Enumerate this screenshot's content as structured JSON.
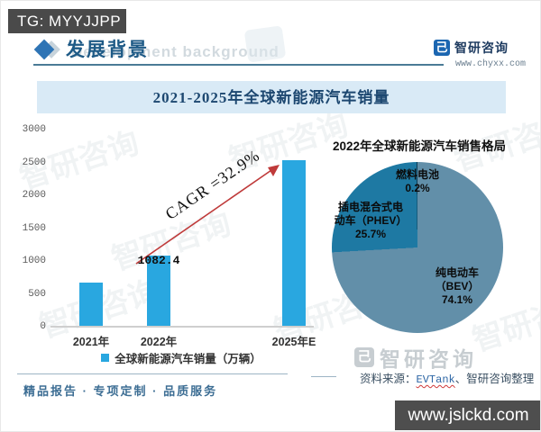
{
  "page": {
    "tg_badge": "TG: MYYJJPP",
    "site_badge": "www.jslckd.com"
  },
  "header": {
    "title": "发展背景",
    "watermark_text": "Development background",
    "brand_name": "智研咨询",
    "brand_mark_glyph": "己",
    "brand_url": "www.chyxx.com",
    "brand_color": "#1b66b1"
  },
  "banner": {
    "title": "2021-2025年全球新能源汽车销量"
  },
  "chart_data": [
    {
      "type": "bar",
      "title": "2021-2025年全球新能源汽车销量",
      "categories": [
        "2021年",
        "2022年",
        "2025年E"
      ],
      "values": [
        670,
        1082.4,
        2540
      ],
      "labeled_value": {
        "category_index": 1,
        "text": "1082.4"
      },
      "ylim": [
        0,
        3000
      ],
      "yticks": [
        0,
        500,
        1000,
        1500,
        2000,
        2500,
        3000
      ],
      "ylabel": "",
      "xlabel": "",
      "grid": false,
      "legend": [
        "全球新能源汽车销量（万辆）"
      ],
      "legend_position": "bottom",
      "bar_color": "#29a7e0",
      "annotation": {
        "text": "CAGR =32.9%",
        "color": "#bf3a3a",
        "style": "arrow-up-right"
      }
    },
    {
      "type": "pie",
      "title": "2022年全球新能源汽车销售格局",
      "slices": [
        {
          "name": "纯电动车（BEV）",
          "value_pct": 74.1,
          "color": "#628fa9",
          "label_lines": [
            "纯电动车",
            "（BEV）",
            "74.1%"
          ]
        },
        {
          "name": "插电混合式电动车（PHEV）",
          "value_pct": 25.7,
          "color": "#1e79a3",
          "label_lines": [
            "插电混合式电",
            "动车（PHEV）",
            "25.7%"
          ]
        },
        {
          "name": "燃料电池",
          "value_pct": 0.2,
          "color": "#0d3e57",
          "label_lines": [
            "燃料电池",
            "0.2%"
          ]
        }
      ],
      "start_angle": "top",
      "direction": "clockwise"
    }
  ],
  "footer": {
    "tagline": "精品报告 · 专项定制 · 品质服务",
    "source_label": "资料来源：",
    "source_highlight": "EVTank",
    "source_rest": "、智研咨询整理",
    "watermark_brand": "智研咨询",
    "watermark_mark_glyph": "己"
  },
  "watermark_repeat_text": "智研咨询"
}
